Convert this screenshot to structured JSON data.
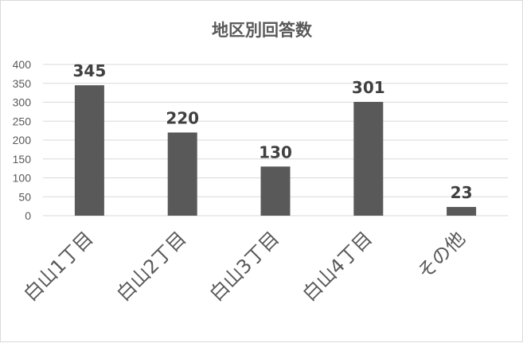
{
  "chart_data": {
    "type": "bar",
    "title": "地区別回答数",
    "categories": [
      "白山1丁目",
      "白山2丁目",
      "白山3丁目",
      "白山4丁目",
      "その他"
    ],
    "values": [
      345,
      220,
      130,
      301,
      23
    ],
    "ylim": [
      0,
      400
    ],
    "yticks": [
      0,
      50,
      100,
      150,
      200,
      250,
      300,
      350,
      400
    ],
    "grid": true,
    "legend": "none",
    "colors": {
      "bar": "#595959",
      "grid": "#d9d9d9"
    }
  }
}
